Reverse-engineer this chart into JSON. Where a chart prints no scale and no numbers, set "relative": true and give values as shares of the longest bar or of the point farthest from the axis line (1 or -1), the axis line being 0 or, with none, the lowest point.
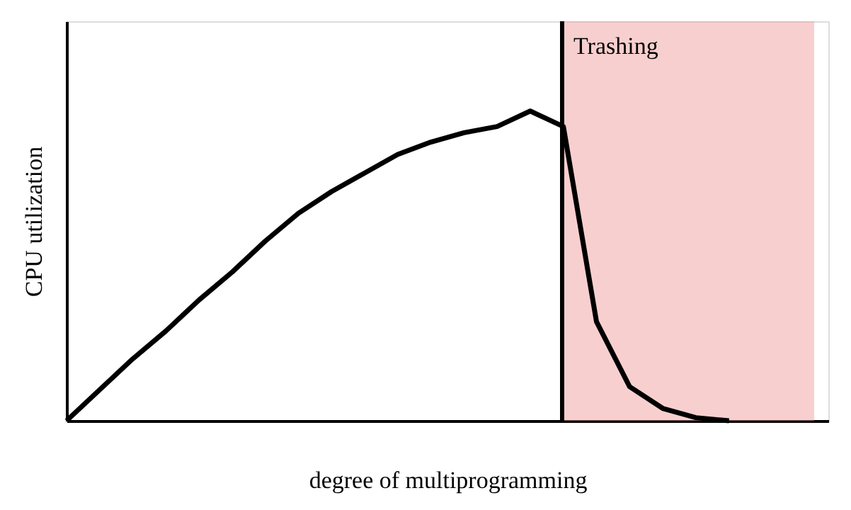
{
  "chart_data": {
    "type": "line",
    "relative": true,
    "xlabel": "degree of multiprogramming",
    "ylabel": "CPU utilization",
    "line_style": "solid",
    "categories": [
      null,
      null,
      null,
      null,
      null,
      null,
      null,
      null,
      null,
      null,
      null,
      null,
      null,
      null,
      null,
      null,
      null,
      null,
      null,
      null,
      null,
      null,
      null
    ],
    "series": [
      {
        "color": "#000000",
        "values": [
          0,
          0.1,
          0.2,
          0.29,
          0.39,
          0.48,
          0.58,
          0.67,
          0.74,
          0.8,
          0.86,
          0.9,
          0.93,
          0.95,
          1,
          0.95,
          0.32,
          0.11,
          0.04,
          0.01,
          0,
          null,
          null
        ]
      }
    ],
    "annotations": [
      "Trashing"
    ]
  }
}
